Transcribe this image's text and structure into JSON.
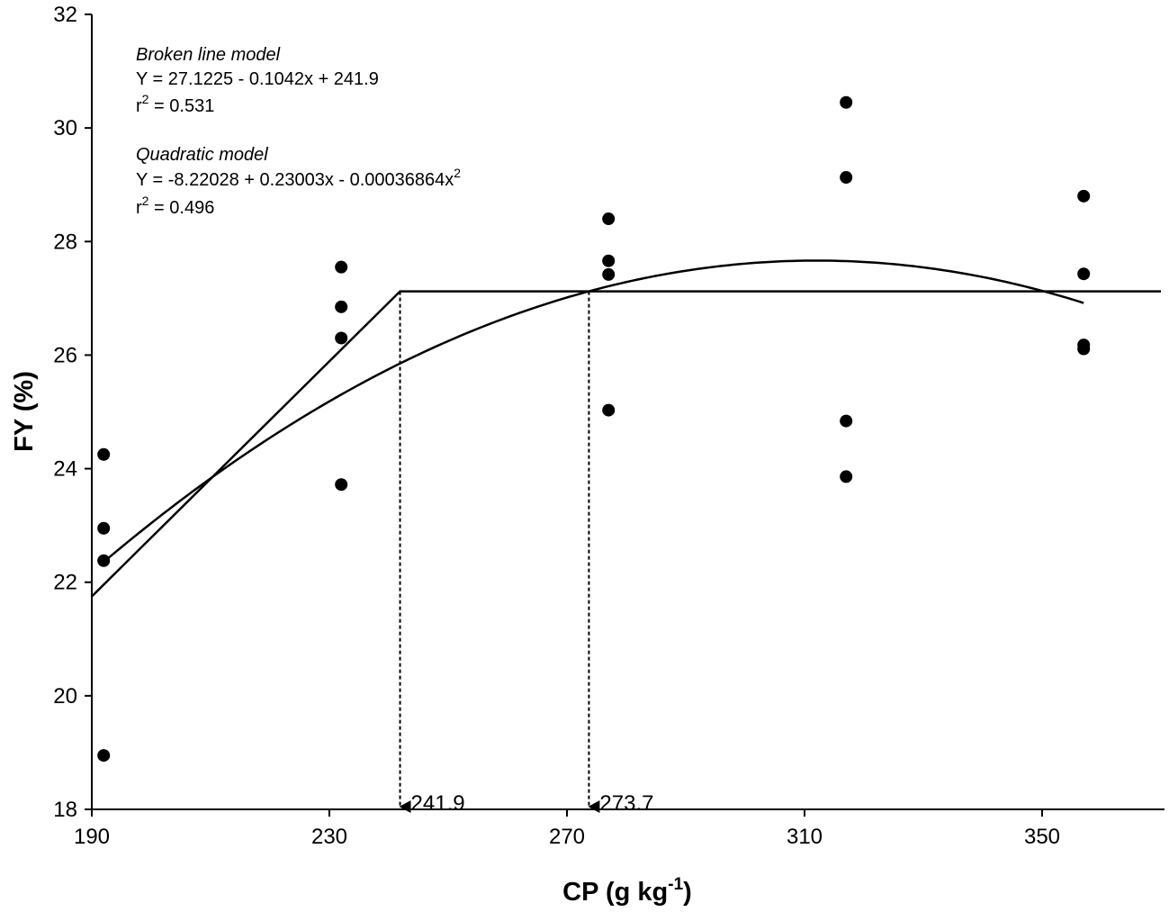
{
  "chart_data": {
    "type": "scatter",
    "xlabel": "CP (g kg",
    "xlabel_sup": "-1",
    "xlabel_tail": ")",
    "ylabel": "FY (%)",
    "xlim": [
      190,
      370
    ],
    "ylim": [
      18,
      32
    ],
    "x_ticks": [
      190,
      230,
      270,
      310,
      350
    ],
    "y_ticks": [
      18,
      20,
      22,
      24,
      26,
      28,
      30,
      32
    ],
    "points": [
      {
        "x": 192,
        "y": 24.25
      },
      {
        "x": 192,
        "y": 22.95
      },
      {
        "x": 192,
        "y": 22.38
      },
      {
        "x": 192,
        "y": 18.95
      },
      {
        "x": 232,
        "y": 27.55
      },
      {
        "x": 232,
        "y": 26.85
      },
      {
        "x": 232,
        "y": 26.3
      },
      {
        "x": 232,
        "y": 23.72
      },
      {
        "x": 277,
        "y": 28.4
      },
      {
        "x": 277,
        "y": 27.66
      },
      {
        "x": 277,
        "y": 27.42
      },
      {
        "x": 277,
        "y": 25.03
      },
      {
        "x": 317,
        "y": 30.45
      },
      {
        "x": 317,
        "y": 29.13
      },
      {
        "x": 317,
        "y": 24.84
      },
      {
        "x": 317,
        "y": 23.86
      },
      {
        "x": 357,
        "y": 28.8
      },
      {
        "x": 357,
        "y": 27.43
      },
      {
        "x": 357,
        "y": 26.18
      },
      {
        "x": 357,
        "y": 26.11
      }
    ],
    "broken_line": {
      "plateau": 27.1225,
      "slope": -0.1042,
      "breakpoint": 241.9,
      "x_start": 190,
      "x_end": 370
    },
    "quadratic": {
      "a": -8.22028,
      "b": 0.23003,
      "c": -0.00036864,
      "x_start": 192,
      "x_end": 357
    },
    "markers": [
      {
        "x": 241.9,
        "y": 27.1225,
        "label": "241.9"
      },
      {
        "x": 273.7,
        "y": 27.1225,
        "label": "273.7"
      }
    ],
    "annotations": {
      "broken_title": "Broken line model",
      "broken_eq": "Y = 27.1225 - 0.1042x + 241.9",
      "broken_r2_prefix": "r",
      "broken_r2_sup": "2",
      "broken_r2_value": " = 0.531",
      "quad_title": "Quadratic model",
      "quad_eq": "Y = -8.22028 + 0.23003x - 0.00036864x",
      "quad_eq_sup": "2",
      "quad_r2_prefix": "r",
      "quad_r2_sup": "2",
      "quad_r2_value": " = 0.496"
    }
  }
}
